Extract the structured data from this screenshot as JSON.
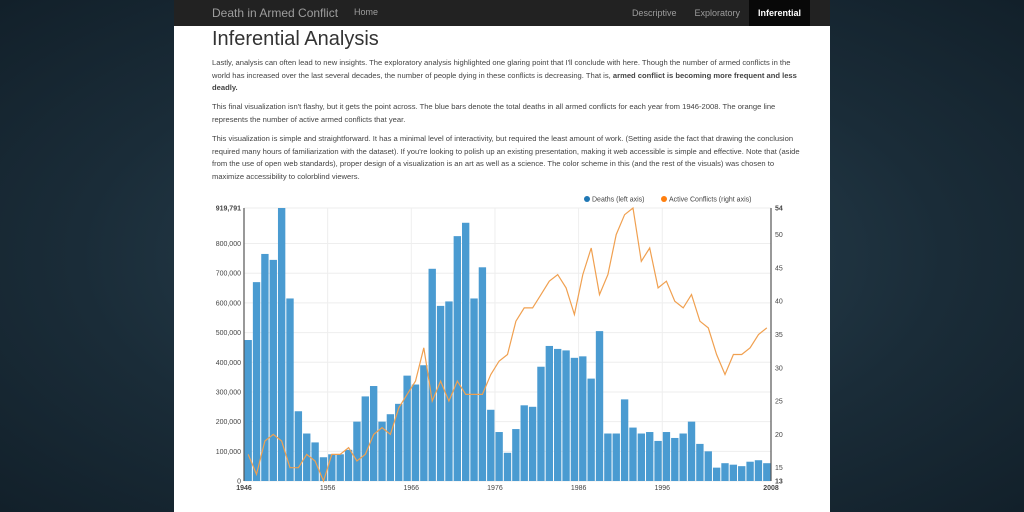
{
  "nav": {
    "brand": "Death in Armed Conflict",
    "home": "Home",
    "items": [
      "Descriptive",
      "Exploratory",
      "Inferential"
    ],
    "active": "Inferential"
  },
  "page": {
    "title": "Inferential Analysis",
    "p1": "Lastly, analysis can often lead to new insights. The exploratory analysis highlighted one glaring point that I'll conclude with here. Though the number of armed conflicts in the world has increased over the last several decades, the number of people dying in these conflicts is decreasing. That is,",
    "p1_bold": "armed conflict is becoming more frequent and less deadly.",
    "p2": "This final visualization isn't flashy, but it gets the point across. The blue bars denote the total deaths in all armed conflicts for each year from 1946-2008. The orange line represents the number of active armed conflicts that year.",
    "p3": "This visualization is simple and straightforward. It has a minimal level of interactivity, but required the least amount of work. (Setting aside the fact that drawing the conclusion required many hours of familiarization with the dataset). If you're looking to polish up an existing presentation, making it web accessible is simple and effective. Note that (aside from the use of open web standards), proper design of a visualization is an art as well as a science. The color scheme in this (and the rest of the visuals) was chosen to maximize accessibility to colorblind viewers."
  },
  "chart_data": {
    "type": "bar",
    "title": "",
    "legend": [
      {
        "label": "Deaths (left axis)",
        "color": "#1f77b4"
      },
      {
        "label": "Active Conflicts (right axis)",
        "color": "#ff7f0e"
      }
    ],
    "legend_position": "top-right",
    "x": [
      1946,
      1947,
      1948,
      1949,
      1950,
      1951,
      1952,
      1953,
      1954,
      1955,
      1956,
      1957,
      1958,
      1959,
      1960,
      1961,
      1962,
      1963,
      1964,
      1965,
      1966,
      1967,
      1968,
      1969,
      1970,
      1971,
      1972,
      1973,
      1974,
      1975,
      1976,
      1977,
      1978,
      1979,
      1980,
      1981,
      1982,
      1983,
      1984,
      1985,
      1986,
      1987,
      1988,
      1989,
      1990,
      1991,
      1992,
      1993,
      1994,
      1995,
      1996,
      1997,
      1998,
      1999,
      2000,
      2001,
      2002,
      2003,
      2004,
      2005,
      2006,
      2007,
      2008
    ],
    "series": [
      {
        "name": "Deaths (left axis)",
        "type": "bar",
        "axis": "left",
        "values": [
          475000,
          670000,
          765000,
          745000,
          919791,
          615000,
          235000,
          160000,
          130000,
          80000,
          90000,
          90000,
          105000,
          200000,
          285000,
          320000,
          200000,
          225000,
          260000,
          355000,
          325000,
          390000,
          715000,
          590000,
          605000,
          825000,
          870000,
          615000,
          720000,
          240000,
          165000,
          95000,
          175000,
          255000,
          250000,
          385000,
          455000,
          445000,
          440000,
          415000,
          420000,
          345000,
          505000,
          160000,
          160000,
          275000,
          180000,
          160000,
          165000,
          135000,
          165000,
          145000,
          160000,
          200000,
          125000,
          100000,
          45000,
          60000,
          55000,
          50000,
          65000,
          70000,
          60000
        ]
      },
      {
        "name": "Active Conflicts (right axis)",
        "type": "line",
        "axis": "right",
        "values": [
          17,
          14,
          19,
          20,
          19,
          15,
          15,
          17,
          16,
          13,
          17,
          17,
          18,
          16,
          17,
          20,
          21,
          20,
          24,
          26,
          28,
          33,
          25,
          28,
          25,
          28,
          26,
          26,
          26,
          29,
          31,
          32,
          37,
          39,
          39,
          41,
          43,
          44,
          42,
          38,
          44,
          48,
          41,
          44,
          50,
          53,
          54,
          46,
          48,
          42,
          43,
          40,
          39,
          41,
          37,
          36,
          32,
          29,
          32,
          32,
          33,
          35,
          36
        ]
      }
    ],
    "ylim_left": [
      0,
      919791
    ],
    "ylim_right": [
      13,
      54
    ],
    "left_ticks": [
      "0",
      "100,000",
      "200,000",
      "300,000",
      "400,000",
      "500,000",
      "600,000",
      "700,000",
      "800,000",
      "919,791"
    ],
    "right_ticks": [
      "13",
      "15",
      "20",
      "25",
      "30",
      "35",
      "40",
      "45",
      "50",
      "54"
    ],
    "x_ticks": [
      "1946",
      "1956",
      "1966",
      "1976",
      "1986",
      "1996",
      "2008"
    ],
    "grid": true
  }
}
